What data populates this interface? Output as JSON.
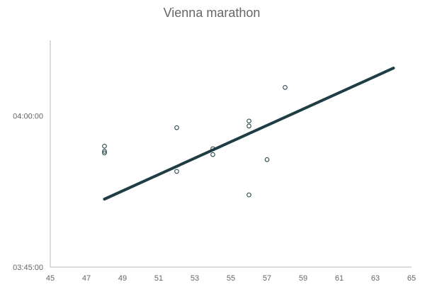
{
  "chart_data": {
    "type": "scatter",
    "title": "Vienna marathon",
    "xlabel": "",
    "ylabel": "",
    "xlim": [
      45,
      65
    ],
    "ylim": [
      "03:45:00",
      "04:07:30"
    ],
    "x_ticks": [
      "45",
      "47",
      "49",
      "51",
      "53",
      "55",
      "57",
      "59",
      "61",
      "63",
      "65"
    ],
    "y_ticks": [
      "03:45:00",
      "04:00:00"
    ],
    "grid": false,
    "legend": "none",
    "point_color": "#1a3a40",
    "trendline_color": "#1e3d44",
    "points": [
      {
        "x": 48,
        "y": "03:57:00"
      },
      {
        "x": 48,
        "y": "03:56:30"
      },
      {
        "x": 48,
        "y": "03:56:20"
      },
      {
        "x": 52,
        "y": "03:58:50"
      },
      {
        "x": 52,
        "y": "03:54:30"
      },
      {
        "x": 54,
        "y": "03:56:45"
      },
      {
        "x": 54,
        "y": "03:56:10"
      },
      {
        "x": 56,
        "y": "03:59:30"
      },
      {
        "x": 56,
        "y": "03:59:00"
      },
      {
        "x": 56,
        "y": "03:52:10"
      },
      {
        "x": 57,
        "y": "03:55:40"
      },
      {
        "x": 58,
        "y": "04:02:50"
      }
    ],
    "trendline": [
      {
        "x": 48,
        "y": "03:51:45"
      },
      {
        "x": 64,
        "y": "04:04:45"
      }
    ]
  }
}
